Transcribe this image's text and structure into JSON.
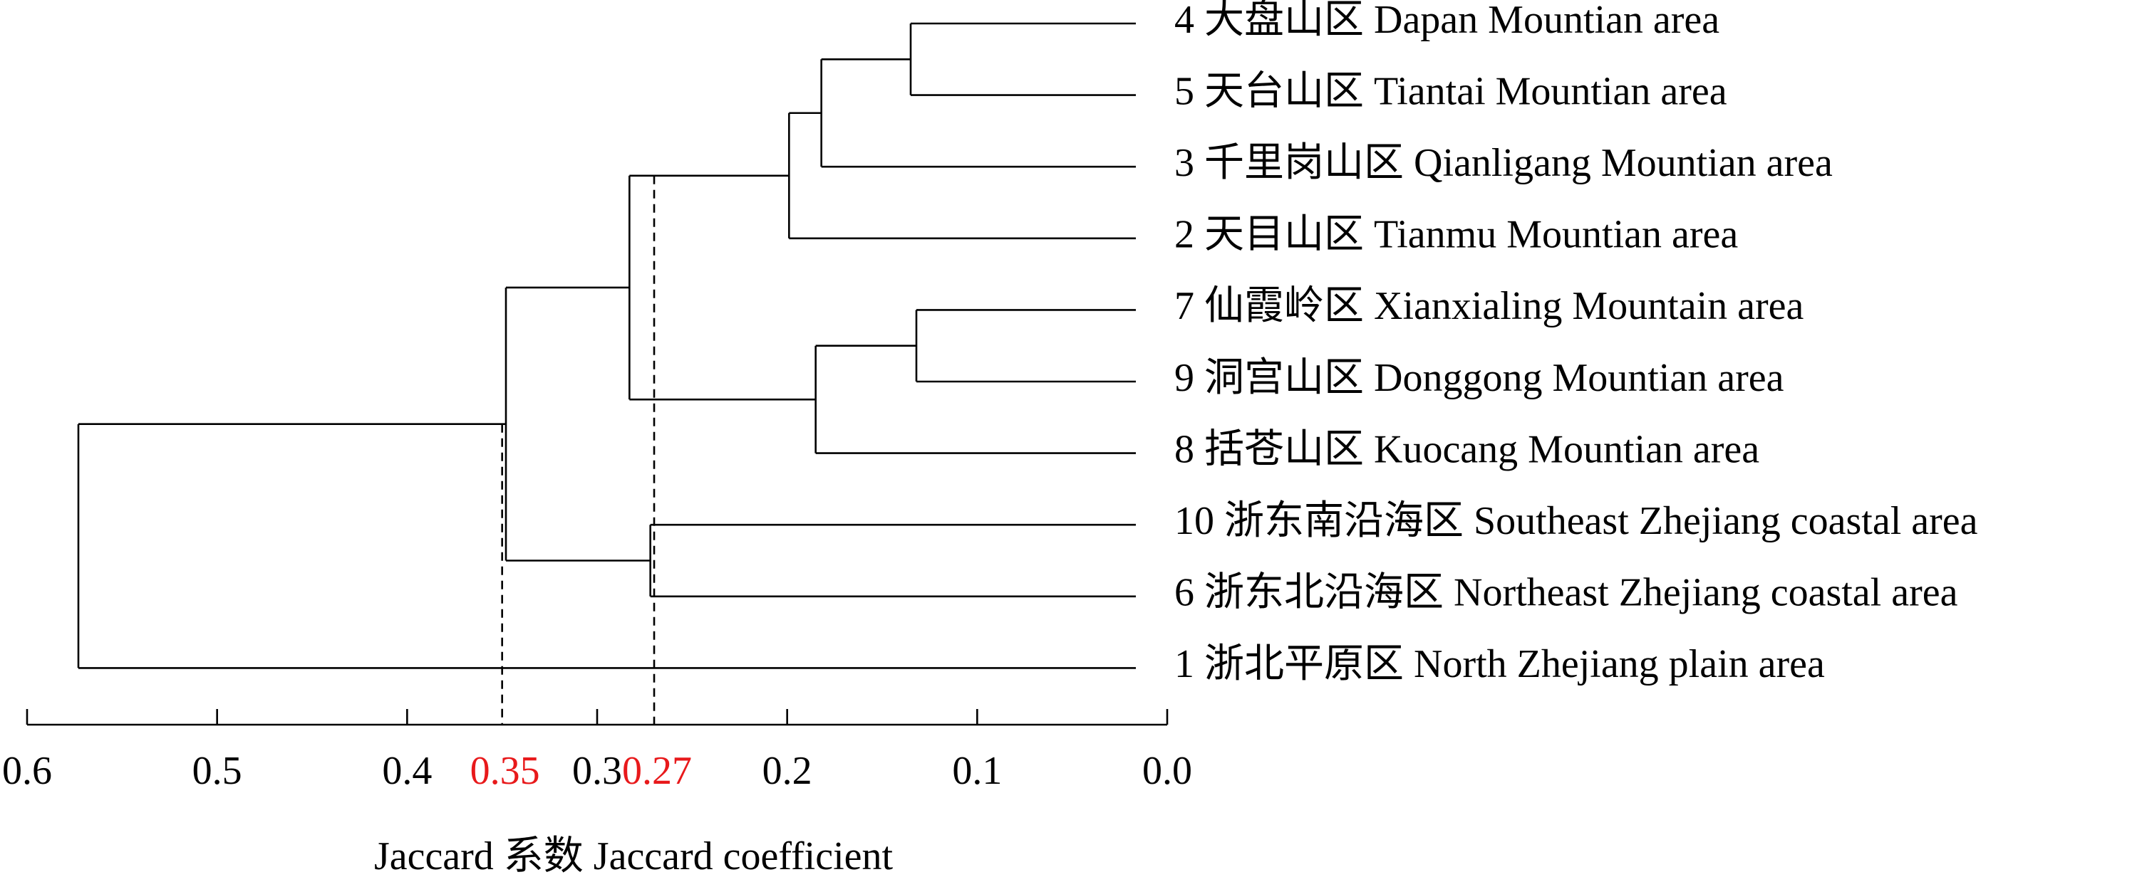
{
  "chart_data": {
    "type": "dendrogram",
    "xlabel": "Jaccard 系数 Jaccard coefficient",
    "xlim": [
      0.6,
      0
    ],
    "xticks": [
      0.6,
      0.5,
      0.4,
      0.3,
      0.2,
      0.1,
      {
        "value": 0,
        "label": "0.0"
      }
    ],
    "cuts": [
      {
        "value": 0.35,
        "color": "#e8191b"
      },
      {
        "value": 0.27,
        "color": "#e8191b"
      }
    ],
    "color": "#000000",
    "tree": {
      "height": 0.573,
      "children": [
        {
          "height": 0.348,
          "children": [
            {
              "height": 0.283,
              "children": [
                {
                  "height": 0.199,
                  "children": [
                    {
                      "height": 0.182,
                      "children": [
                        {
                          "height": 0.135,
                          "children": [
                            {
                              "label": "4 大盘山区 Dapan Mountian area"
                            },
                            {
                              "label": "5 天台山区 Tiantai Mountian area"
                            }
                          ]
                        },
                        {
                          "label": "3 千里岗山区 Qianligang Mountian area"
                        }
                      ]
                    },
                    {
                      "label": "2 天目山区 Tianmu Mountian area"
                    }
                  ]
                },
                {
                  "height": 0.185,
                  "children": [
                    {
                      "height": 0.132,
                      "children": [
                        {
                          "label": "7 仙霞岭区 Xianxialing Mountain area"
                        },
                        {
                          "label": "9 洞宫山区 Donggong Mountian area"
                        }
                      ]
                    },
                    {
                      "label": "8 括苍山区 Kuocang Mountian area"
                    }
                  ]
                }
              ]
            },
            {
              "height": 0.272,
              "children": [
                {
                  "label": "10 浙东南沿海区 Southeast Zhejiang coastal area"
                },
                {
                  "label": "6 浙东北沿海区 Northeast Zhejiang coastal area"
                }
              ]
            }
          ]
        },
        {
          "label": "1 浙北平原区 North Zhejiang plain area"
        }
      ]
    }
  }
}
